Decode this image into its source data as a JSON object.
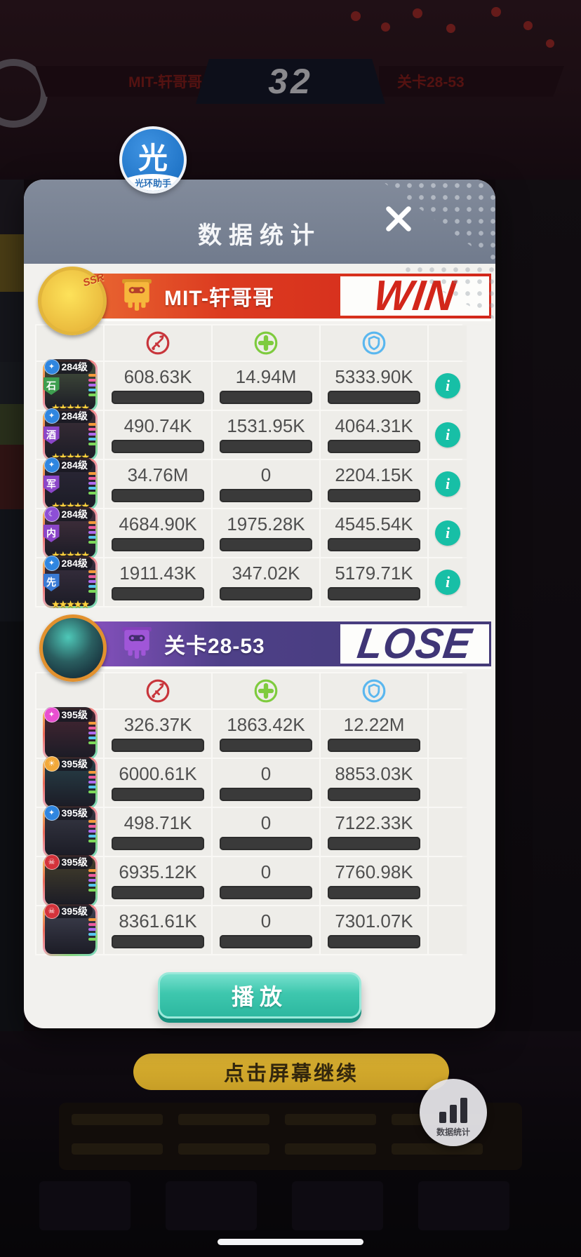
{
  "background": {
    "score": "32",
    "score_left_label": "MIT-轩哥哥",
    "score_right_label": "关卡28-53",
    "continue_label": "点击屏幕继续",
    "assistant_label": "数据统计"
  },
  "modal": {
    "title": "数据统计",
    "badge_glyph": "光",
    "badge_label": "光环助手",
    "play_label": "播放"
  },
  "columns": [
    {
      "name": "damage",
      "color": "#c8353b"
    },
    {
      "name": "heal",
      "color": "#7ecb3e"
    },
    {
      "name": "shield",
      "color": "#5ab7ef"
    }
  ],
  "teams": [
    {
      "result": "WIN",
      "name": "MIT-轩哥哥",
      "avatar_badge": "SSR",
      "rows": [
        {
          "level": "284级",
          "tag": "石",
          "tag_color": "#3e9e4f",
          "emblem": "✦",
          "emblem_color": "#2f86e0",
          "stars": "★★★★★",
          "portrait": "#44503c",
          "info": true,
          "cells": [
            {
              "value": "608.63K",
              "pct": 1.8
            },
            {
              "value": "14.94M",
              "pct": 100
            },
            {
              "value": "5333.90K",
              "pct": 43.6
            }
          ]
        },
        {
          "level": "284级",
          "tag": "酒",
          "tag_color": "#8b46c8",
          "emblem": "✦",
          "emblem_color": "#2f86e0",
          "stars": "★★★★★",
          "portrait": "#3c2f38",
          "info": true,
          "cells": [
            {
              "value": "490.74K",
              "pct": 1.4
            },
            {
              "value": "1531.95K",
              "pct": 10.3
            },
            {
              "value": "4064.31K",
              "pct": 33.3
            }
          ]
        },
        {
          "level": "284级",
          "tag": "军",
          "tag_color": "#8b46c8",
          "emblem": "✦",
          "emblem_color": "#2f86e0",
          "stars": "★★★★★",
          "portrait": "#2c2838",
          "info": true,
          "cells": [
            {
              "value": "34.76M",
              "pct": 100
            },
            {
              "value": "0",
              "pct": 0
            },
            {
              "value": "2204.15K",
              "pct": 18
            }
          ]
        },
        {
          "level": "284级",
          "tag": "内",
          "tag_color": "#8b46c8",
          "emblem": "☾",
          "emblem_color": "#8d4fd6",
          "stars": "★★★★★",
          "portrait": "#45313e",
          "info": true,
          "cells": [
            {
              "value": "4684.90K",
              "pct": 13.5
            },
            {
              "value": "1975.28K",
              "pct": 13.2
            },
            {
              "value": "4545.54K",
              "pct": 37.2
            }
          ]
        },
        {
          "level": "284级",
          "tag": "先",
          "tag_color": "#3a7bd5",
          "emblem": "✦",
          "emblem_color": "#2f86e0",
          "stars": "★★★★★",
          "portrait": "#3a3040",
          "info": true,
          "cells": [
            {
              "value": "1911.43K",
              "pct": 5.5
            },
            {
              "value": "347.02K",
              "pct": 2.3
            },
            {
              "value": "5179.71K",
              "pct": 42.4
            }
          ]
        }
      ]
    },
    {
      "result": "LOSE",
      "name": "关卡28-53",
      "rows": [
        {
          "level": "395级",
          "emblem": "✦",
          "emblem_color": "#e84fd0",
          "portrait": "#472633",
          "info": false,
          "cells": [
            {
              "value": "326.37K",
              "pct": 0.9
            },
            {
              "value": "1863.42K",
              "pct": 12.5
            },
            {
              "value": "12.22M",
              "pct": 100
            }
          ]
        },
        {
          "level": "395级",
          "emblem": "☀",
          "emblem_color": "#f2a93b",
          "portrait": "#274049",
          "info": false,
          "cells": [
            {
              "value": "6000.61K",
              "pct": 17.3
            },
            {
              "value": "0",
              "pct": 0
            },
            {
              "value": "8853.03K",
              "pct": 72.4
            }
          ]
        },
        {
          "level": "395级",
          "emblem": "✦",
          "emblem_color": "#2f86e0",
          "portrait": "#363844",
          "info": false,
          "cells": [
            {
              "value": "498.71K",
              "pct": 1.4
            },
            {
              "value": "0",
              "pct": 0
            },
            {
              "value": "7122.33K",
              "pct": 58.3
            }
          ]
        },
        {
          "level": "395级",
          "emblem": "☠",
          "emblem_color": "#d4333b",
          "portrait": "#443f2b",
          "info": false,
          "cells": [
            {
              "value": "6935.12K",
              "pct": 20
            },
            {
              "value": "0",
              "pct": 0
            },
            {
              "value": "7760.98K",
              "pct": 63.5
            }
          ]
        },
        {
          "level": "395级",
          "emblem": "☠",
          "emblem_color": "#d4333b",
          "portrait": "#3f4150",
          "info": false,
          "cells": [
            {
              "value": "8361.61K",
              "pct": 24.1
            },
            {
              "value": "0",
              "pct": 0
            },
            {
              "value": "7301.07K",
              "pct": 59.7
            }
          ]
        }
      ]
    }
  ]
}
